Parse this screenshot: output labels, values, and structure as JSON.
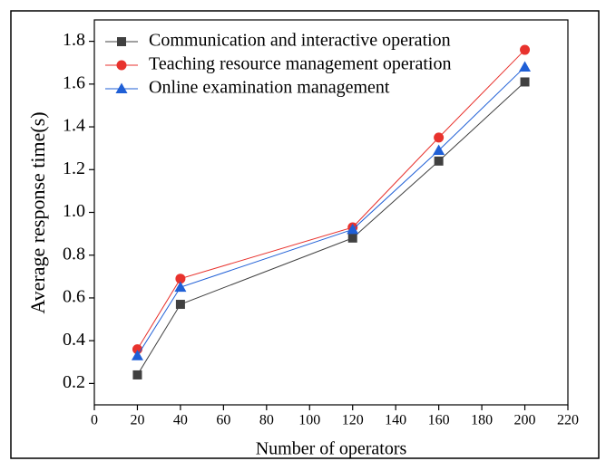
{
  "chart_data": {
    "type": "line",
    "xlabel": "Number of operators",
    "ylabel": "Average response time(s)",
    "x": [
      20,
      40,
      120,
      160,
      200
    ],
    "series": [
      {
        "name": "Communication and interactive operation",
        "color": "#404040",
        "marker": "square",
        "values": [
          0.24,
          0.57,
          0.88,
          1.24,
          1.61
        ]
      },
      {
        "name": "Teaching resource management operation",
        "color": "#e8322d",
        "marker": "circle",
        "values": [
          0.36,
          0.69,
          0.93,
          1.35,
          1.76
        ]
      },
      {
        "name": "Online examination management",
        "color": "#1f5fd6",
        "marker": "triangle",
        "values": [
          0.33,
          0.65,
          0.92,
          1.29,
          1.68
        ]
      }
    ],
    "xlim": [
      0,
      220
    ],
    "xticks": [
      0,
      20,
      40,
      60,
      80,
      100,
      120,
      140,
      160,
      180,
      200,
      220
    ],
    "ylim": [
      0.1,
      1.9
    ],
    "yticks": [
      0.2,
      0.4,
      0.6,
      0.8,
      {
        "value": 1,
        "label": "1.0"
      },
      1.2,
      1.4,
      1.6,
      1.8
    ],
    "legend": "upper-left",
    "grid": false
  }
}
